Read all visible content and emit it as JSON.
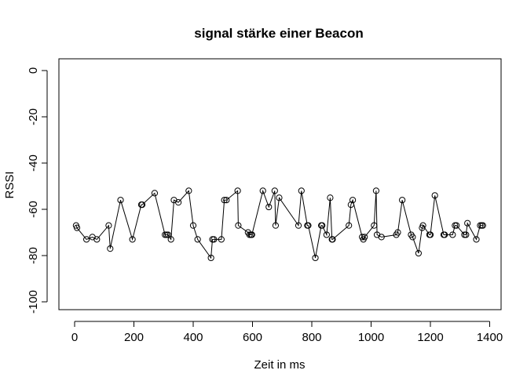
{
  "chart_data": {
    "type": "line",
    "title": "signal stärke einer Beacon",
    "xlabel": "Zeit in ms",
    "ylabel": "RSSI",
    "xlim": [
      0,
      1400
    ],
    "ylim": [
      -100,
      0
    ],
    "x_ticks": [
      0,
      200,
      400,
      600,
      800,
      1000,
      1200,
      1400
    ],
    "y_ticks": [
      0,
      -20,
      -40,
      -60,
      -80,
      -100
    ],
    "grid": false,
    "markers": "open-circle",
    "series": [
      {
        "x": [
          5,
          8,
          40,
          60,
          75,
          115,
          120,
          155,
          195,
          225,
          228,
          270,
          305,
          310,
          315,
          325,
          335,
          350,
          385,
          400,
          415,
          460,
          465,
          470,
          495,
          505,
          512,
          550,
          552,
          585,
          590,
          595,
          598,
          635,
          655,
          675,
          678,
          690,
          755,
          765,
          785,
          788,
          812,
          832,
          835,
          850,
          862,
          868,
          870,
          925,
          932,
          938,
          970,
          974,
          978,
          1010,
          1017,
          1020,
          1035,
          1085,
          1090,
          1105,
          1135,
          1140,
          1160,
          1172,
          1175,
          1197,
          1200,
          1215,
          1245,
          1248,
          1275,
          1283,
          1288,
          1315,
          1320,
          1325,
          1355,
          1368,
          1373,
          1377
        ],
        "y": [
          -67,
          -68,
          -73,
          -72,
          -73,
          -67,
          -77,
          -56,
          -73,
          -58,
          -58,
          -53,
          -71,
          -71,
          -71,
          -73,
          -56,
          -57,
          -52,
          -67,
          -73,
          -81,
          -73,
          -73,
          -73,
          -56,
          -56,
          -52,
          -67,
          -70,
          -71,
          -71,
          -71,
          -52,
          -59,
          -52,
          -67,
          -55,
          -67,
          -52,
          -67,
          -67,
          -81,
          -67,
          -67,
          -71,
          -55,
          -73,
          -73,
          -67,
          -58,
          -56,
          -72,
          -73,
          -72,
          -67,
          -52,
          -71,
          -72,
          -71,
          -70,
          -56,
          -71,
          -72,
          -79,
          -68,
          -67,
          -71,
          -71,
          -54,
          -71,
          -71,
          -71,
          -67,
          -67,
          -71,
          -71,
          -66,
          -73,
          -67,
          -67,
          -67
        ]
      }
    ]
  }
}
